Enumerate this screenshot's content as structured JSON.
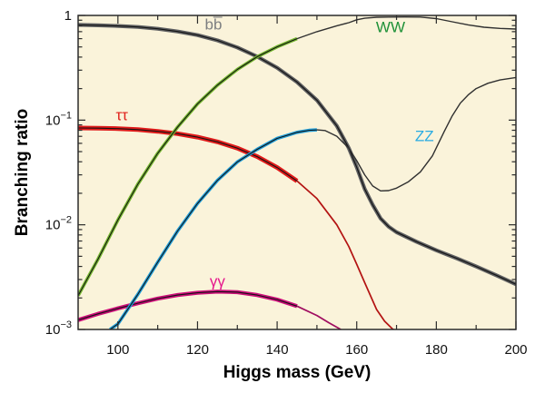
{
  "figure": {
    "xlabel": "Higgs mass (GeV)",
    "ylabel": "Branching ratio"
  },
  "chart_data": {
    "type": "line",
    "title": "",
    "xlabel": "Higgs mass (GeV)",
    "ylabel": "Branching ratio",
    "x_range": [
      90,
      200
    ],
    "y_range": [
      0.001,
      1
    ],
    "y_scale": "log",
    "grid": false,
    "legend_position": "inline-curve-labels",
    "background_color": "#FAF3DA",
    "frame_color": "#2b2b2b",
    "tick_color": "#2b2b2b",
    "tick_label_color": "#111111",
    "x_ticks_major": [
      100,
      120,
      140,
      160,
      180,
      200
    ],
    "x_ticks_minor": [
      110,
      130,
      150,
      170,
      190
    ],
    "y_ticks_major": [
      {
        "v": 1,
        "base": "1",
        "exp": ""
      },
      {
        "v": 0.1,
        "base": "10",
        "exp": "−1"
      },
      {
        "v": 0.01,
        "base": "10",
        "exp": "−2"
      },
      {
        "v": 0.001,
        "base": "10",
        "exp": "−3"
      }
    ],
    "y_minor_mantissas": [
      2,
      3,
      4,
      5,
      6,
      7,
      8,
      9
    ],
    "y_minor_decades": [
      -1,
      -2,
      -3
    ],
    "series": [
      {
        "id": "bb",
        "label": "bb̅",
        "label_color": "#7C7E80",
        "label_pos": [
          124,
          0.83
        ],
        "band": {
          "color": "#5F6062",
          "width": 4.2,
          "until": 200
        },
        "core": {
          "color": "#141414",
          "width": 1.15
        },
        "tail": null,
        "points": [
          [
            90,
            0.812
          ],
          [
            95,
            0.805
          ],
          [
            100,
            0.794
          ],
          [
            105,
            0.776
          ],
          [
            110,
            0.745
          ],
          [
            115,
            0.703
          ],
          [
            120,
            0.648
          ],
          [
            125,
            0.578
          ],
          [
            130,
            0.494
          ],
          [
            135,
            0.404
          ],
          [
            140,
            0.316
          ],
          [
            145,
            0.231
          ],
          [
            150,
            0.155
          ],
          [
            155,
            0.088
          ],
          [
            158,
            0.054
          ],
          [
            160,
            0.0355
          ],
          [
            162,
            0.022
          ],
          [
            164,
            0.0155
          ],
          [
            166,
            0.0115
          ],
          [
            168,
            0.0096
          ],
          [
            170,
            0.0085
          ],
          [
            175,
            0.0069
          ],
          [
            180,
            0.0057
          ],
          [
            185,
            0.0048
          ],
          [
            190,
            0.004
          ],
          [
            195,
            0.0033
          ],
          [
            200,
            0.0027
          ]
        ]
      },
      {
        "id": "tautau",
        "label": "ττ",
        "label_color": "#E0241E",
        "label_pos": [
          101,
          0.112
        ],
        "band": {
          "color": "#E01A1A",
          "width": 5.0,
          "until": 145
        },
        "core": {
          "color": "#141414",
          "width": 1.1
        },
        "tail": {
          "color": "#B31312",
          "width": 1.7
        },
        "points": [
          [
            90,
            0.0841
          ],
          [
            95,
            0.0838
          ],
          [
            100,
            0.083
          ],
          [
            105,
            0.0812
          ],
          [
            110,
            0.0782
          ],
          [
            115,
            0.0742
          ],
          [
            120,
            0.0688
          ],
          [
            125,
            0.062
          ],
          [
            130,
            0.054
          ],
          [
            135,
            0.0448
          ],
          [
            140,
            0.0352
          ],
          [
            145,
            0.0262
          ],
          [
            150,
            0.0178
          ],
          [
            155,
            0.01
          ],
          [
            158,
            0.0062
          ],
          [
            160,
            0.0042
          ],
          [
            162,
            0.0028
          ],
          [
            165,
            0.00155
          ],
          [
            167,
            0.0012
          ],
          [
            169,
            0.00101
          ],
          [
            170,
            0.00096
          ]
        ]
      },
      {
        "id": "gammagamma",
        "label": "γγ",
        "label_color": "#E5148C",
        "label_pos": [
          125,
          0.0029
        ],
        "band": {
          "color": "#CC0E79",
          "width": 4.4,
          "until": 145
        },
        "core": {
          "color": "#141414",
          "width": 1.1
        },
        "tail": {
          "color": "#A00D60",
          "width": 1.7
        },
        "points": [
          [
            90,
            0.00123
          ],
          [
            95,
            0.00141
          ],
          [
            100,
            0.00159
          ],
          [
            105,
            0.00178
          ],
          [
            110,
            0.00197
          ],
          [
            115,
            0.00213
          ],
          [
            120,
            0.00224
          ],
          [
            125,
            0.0023
          ],
          [
            130,
            0.00227
          ],
          [
            135,
            0.00213
          ],
          [
            140,
            0.00193
          ],
          [
            145,
            0.00167
          ],
          [
            150,
            0.00136
          ],
          [
            153,
            0.00116
          ],
          [
            156,
            0.001
          ]
        ]
      },
      {
        "id": "WW",
        "label": "WW",
        "label_color": "#1F9138",
        "label_pos": [
          168.5,
          0.78
        ],
        "band": {
          "color": "#74B62E",
          "width": 3.6,
          "until": 145
        },
        "core": {
          "color": "#141414",
          "width": 1.05
        },
        "tail": {
          "color": "#303030",
          "width": 1.4
        },
        "points": [
          [
            90,
            0.0021
          ],
          [
            95,
            0.0047
          ],
          [
            100,
            0.0111
          ],
          [
            105,
            0.0244
          ],
          [
            110,
            0.0482
          ],
          [
            115,
            0.0858
          ],
          [
            120,
            0.143
          ],
          [
            125,
            0.216
          ],
          [
            130,
            0.305
          ],
          [
            135,
            0.403
          ],
          [
            140,
            0.501
          ],
          [
            145,
            0.6
          ],
          [
            150,
            0.699
          ],
          [
            155,
            0.796
          ],
          [
            158,
            0.852
          ],
          [
            160,
            0.909
          ],
          [
            162,
            0.94
          ],
          [
            165,
            0.96
          ],
          [
            168,
            0.964
          ],
          [
            172,
            0.966
          ],
          [
            176,
            0.9655
          ],
          [
            180,
            0.932
          ],
          [
            184,
            0.87
          ],
          [
            188,
            0.812
          ],
          [
            192,
            0.772
          ],
          [
            196,
            0.752
          ],
          [
            200,
            0.741
          ]
        ]
      },
      {
        "id": "ZZ",
        "label": "ZZ",
        "label_color": "#29ABE2",
        "label_pos": [
          177,
          0.071
        ],
        "band": {
          "color": "#1E9CD7",
          "width": 3.6,
          "until": 150
        },
        "core": {
          "color": "#141414",
          "width": 1.05
        },
        "tail": {
          "color": "#303030",
          "width": 1.4
        },
        "points": [
          [
            98,
            0.001
          ],
          [
            100,
            0.00113
          ],
          [
            105,
            0.00216
          ],
          [
            110,
            0.00439
          ],
          [
            115,
            0.00873
          ],
          [
            120,
            0.016
          ],
          [
            125,
            0.0266
          ],
          [
            130,
            0.0399
          ],
          [
            135,
            0.0526
          ],
          [
            140,
            0.0668
          ],
          [
            145,
            0.0765
          ],
          [
            148,
            0.0798
          ],
          [
            150,
            0.0806
          ],
          [
            152,
            0.0795
          ],
          [
            155,
            0.0702
          ],
          [
            158,
            0.054
          ],
          [
            160,
            0.041
          ],
          [
            162,
            0.03
          ],
          [
            164,
            0.0235
          ],
          [
            166,
            0.0211
          ],
          [
            168,
            0.0212
          ],
          [
            170,
            0.0224
          ],
          [
            173,
            0.0258
          ],
          [
            176,
            0.032
          ],
          [
            179,
            0.0455
          ],
          [
            182,
            0.078
          ],
          [
            184,
            0.11
          ],
          [
            186,
            0.145
          ],
          [
            188,
            0.174
          ],
          [
            190,
            0.2
          ],
          [
            193,
            0.225
          ],
          [
            196,
            0.242
          ],
          [
            200,
            0.255
          ]
        ]
      }
    ]
  }
}
